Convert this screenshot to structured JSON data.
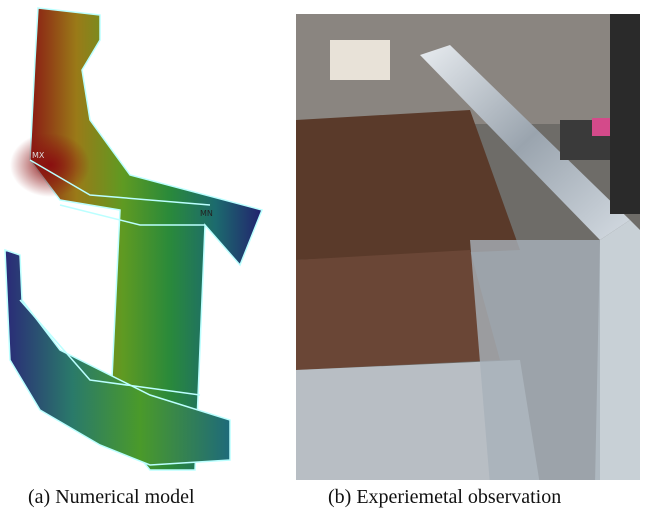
{
  "panels": [
    {
      "caption": "(a) Numerical model",
      "labels": [
        "MX",
        "MN"
      ]
    },
    {
      "caption": "(b) Experiemetal observation"
    }
  ]
}
